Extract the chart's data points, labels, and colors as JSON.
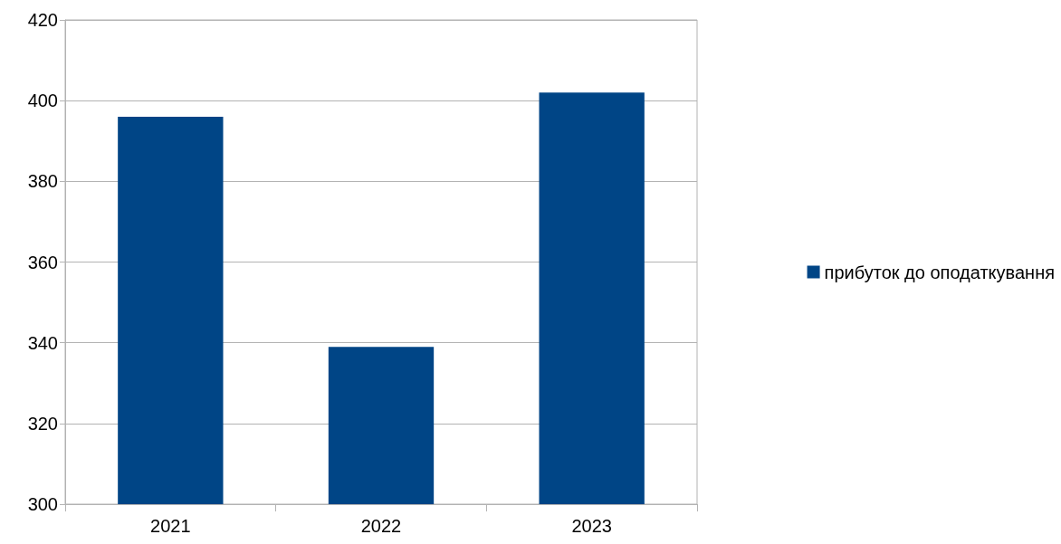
{
  "chart_data": {
    "type": "bar",
    "categories": [
      "2021",
      "2022",
      "2023"
    ],
    "series": [
      {
        "name": "прибуток до оподаткування",
        "color": "#004586",
        "values": [
          396,
          339,
          402
        ]
      }
    ],
    "ylim": [
      300,
      420
    ],
    "yticks": [
      300,
      320,
      340,
      360,
      380,
      400,
      420
    ],
    "grid": "y",
    "legend": "right"
  }
}
